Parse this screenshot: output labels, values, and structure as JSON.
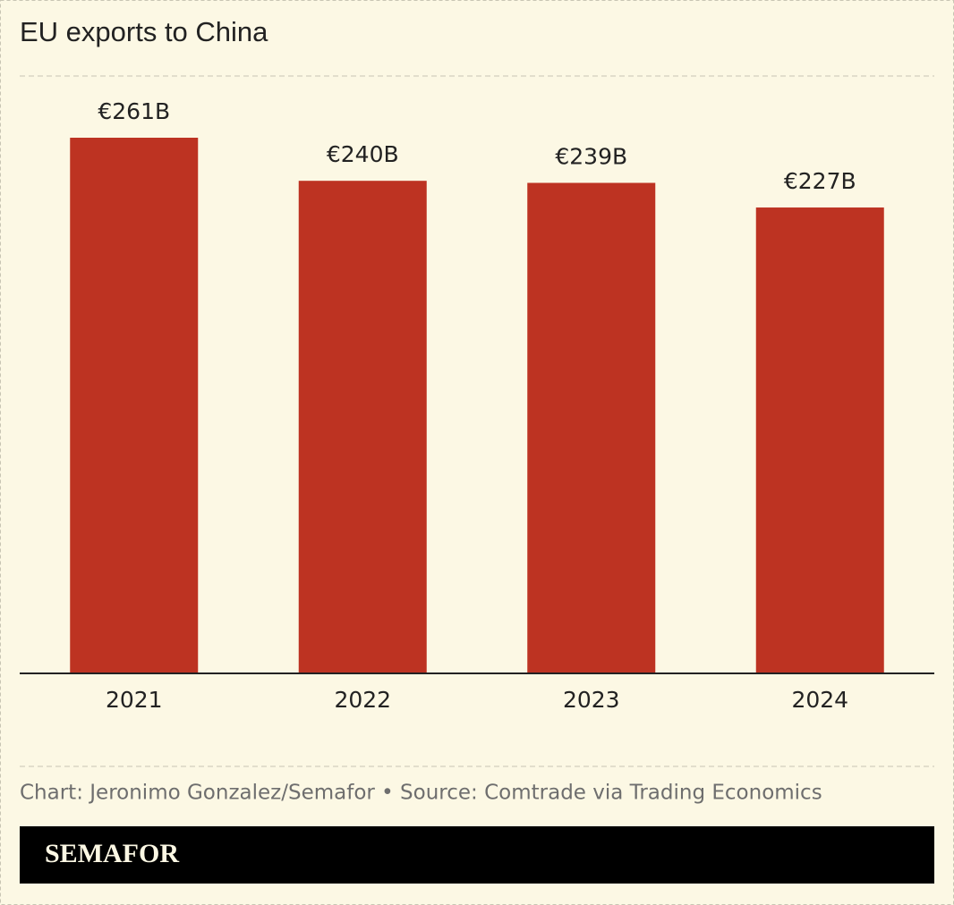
{
  "chart_data": {
    "type": "bar",
    "title": "EU exports to China",
    "categories": [
      "2021",
      "2022",
      "2023",
      "2024"
    ],
    "values": [
      261,
      240,
      239,
      227
    ],
    "value_labels": [
      "€261B",
      "€240B",
      "€239B",
      "€227B"
    ],
    "color": "#bd3322",
    "source": "Chart: Jeronimo Gonzalez/Semafor • Source: Comtrade via Trading Economics",
    "brand": "SEMAFOR"
  }
}
